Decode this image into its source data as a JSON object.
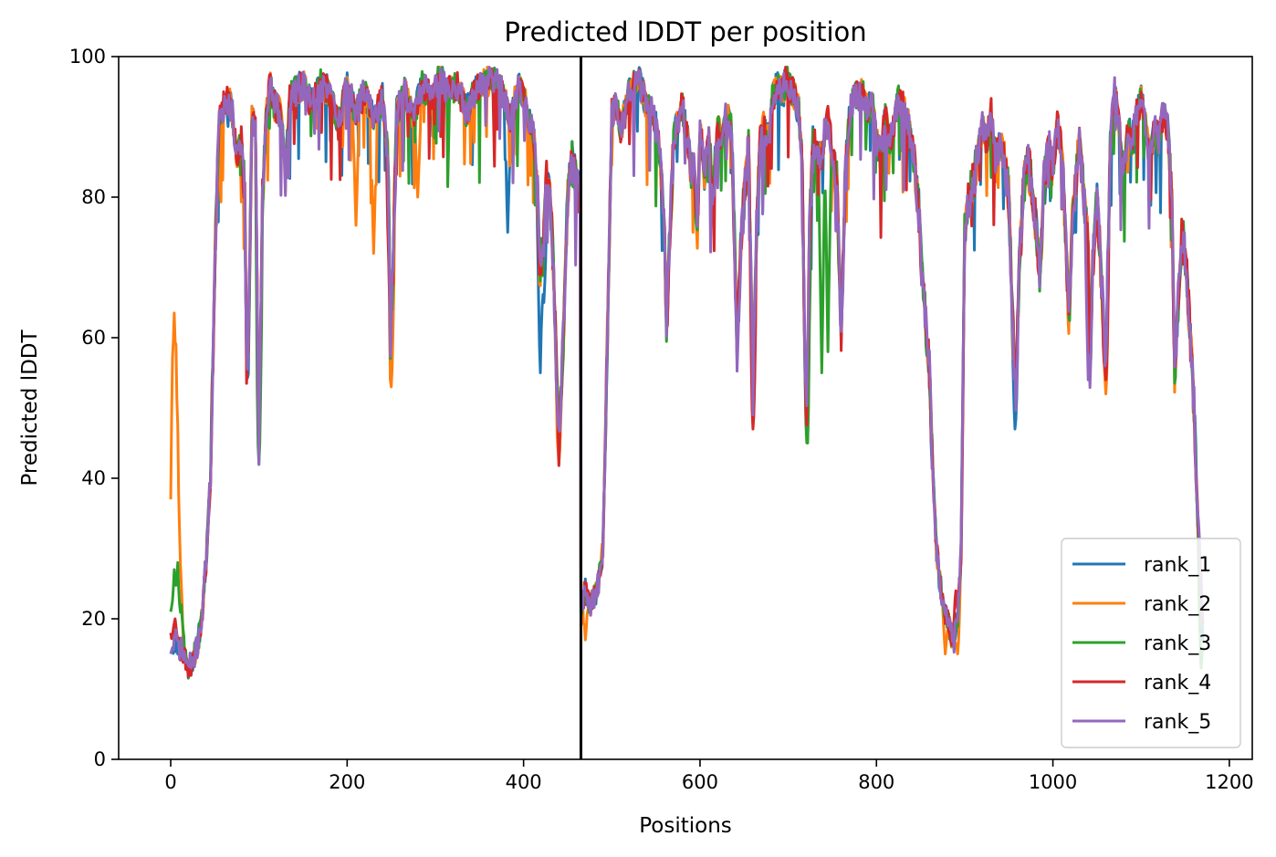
{
  "chart_data": {
    "type": "line",
    "title": "Predicted lDDT per position",
    "xlabel": "Positions",
    "ylabel": "Predicted lDDT",
    "xlim": [
      -59,
      1226
    ],
    "ylim": [
      0,
      100
    ],
    "x_ticks": [
      0,
      200,
      400,
      600,
      800,
      1000,
      1200
    ],
    "y_ticks": [
      0,
      20,
      40,
      60,
      80,
      100
    ],
    "grid": false,
    "legend_position": "lower-right",
    "chain_break": 465,
    "colors": {
      "rank_1": "#1f77b4",
      "rank_2": "#ff7f0e",
      "rank_3": "#2ca02c",
      "rank_4": "#d62728",
      "rank_5": "#9467bd",
      "chain_break": "#000000"
    },
    "base_profile": [
      [
        0,
        16
      ],
      [
        5,
        17
      ],
      [
        10,
        16
      ],
      [
        15,
        15
      ],
      [
        20,
        13
      ],
      [
        25,
        14
      ],
      [
        30,
        16
      ],
      [
        35,
        20
      ],
      [
        40,
        28
      ],
      [
        45,
        40
      ],
      [
        50,
        70
      ],
      [
        55,
        92
      ],
      [
        60,
        93
      ],
      [
        65,
        94
      ],
      [
        70,
        92
      ],
      [
        75,
        86
      ],
      [
        80,
        88
      ],
      [
        84,
        80
      ],
      [
        86,
        56
      ],
      [
        88,
        58
      ],
      [
        92,
        91
      ],
      [
        96,
        90
      ],
      [
        100,
        44
      ],
      [
        104,
        80
      ],
      [
        108,
        91
      ],
      [
        112,
        96
      ],
      [
        118,
        93
      ],
      [
        125,
        92
      ],
      [
        130,
        83
      ],
      [
        135,
        94
      ],
      [
        140,
        95
      ],
      [
        150,
        96
      ],
      [
        160,
        93
      ],
      [
        170,
        96
      ],
      [
        180,
        95
      ],
      [
        190,
        90
      ],
      [
        200,
        96
      ],
      [
        210,
        92
      ],
      [
        220,
        95
      ],
      [
        230,
        91
      ],
      [
        240,
        94
      ],
      [
        247,
        85
      ],
      [
        249,
        57
      ],
      [
        252,
        70
      ],
      [
        256,
        92
      ],
      [
        265,
        95
      ],
      [
        275,
        91
      ],
      [
        285,
        96
      ],
      [
        295,
        94
      ],
      [
        305,
        97
      ],
      [
        315,
        95
      ],
      [
        325,
        96
      ],
      [
        335,
        92
      ],
      [
        345,
        95
      ],
      [
        355,
        96
      ],
      [
        365,
        97
      ],
      [
        375,
        95
      ],
      [
        385,
        91
      ],
      [
        395,
        96
      ],
      [
        405,
        92
      ],
      [
        412,
        88
      ],
      [
        416,
        80
      ],
      [
        418,
        70
      ],
      [
        422,
        72
      ],
      [
        426,
        82
      ],
      [
        430,
        80
      ],
      [
        434,
        70
      ],
      [
        438,
        52
      ],
      [
        440,
        44
      ],
      [
        445,
        60
      ],
      [
        450,
        80
      ],
      [
        455,
        85
      ],
      [
        460,
        82
      ],
      [
        464,
        80
      ],
      [
        465,
        22
      ],
      [
        470,
        24
      ],
      [
        475,
        22
      ],
      [
        480,
        23
      ],
      [
        485,
        25
      ],
      [
        490,
        30
      ],
      [
        495,
        60
      ],
      [
        500,
        92
      ],
      [
        505,
        93
      ],
      [
        510,
        90
      ],
      [
        515,
        92
      ],
      [
        520,
        95
      ],
      [
        525,
        96
      ],
      [
        530,
        97
      ],
      [
        535,
        95
      ],
      [
        540,
        92
      ],
      [
        545,
        93
      ],
      [
        550,
        90
      ],
      [
        555,
        86
      ],
      [
        560,
        75
      ],
      [
        562,
        60
      ],
      [
        565,
        72
      ],
      [
        570,
        88
      ],
      [
        575,
        91
      ],
      [
        580,
        93
      ],
      [
        585,
        89
      ],
      [
        590,
        84
      ],
      [
        593,
        85
      ],
      [
        597,
        75
      ],
      [
        600,
        90
      ],
      [
        605,
        84
      ],
      [
        610,
        88
      ],
      [
        615,
        80
      ],
      [
        620,
        90
      ],
      [
        625,
        88
      ],
      [
        630,
        92
      ],
      [
        635,
        90
      ],
      [
        638,
        80
      ],
      [
        642,
        58
      ],
      [
        646,
        72
      ],
      [
        650,
        80
      ],
      [
        655,
        88
      ],
      [
        660,
        52
      ],
      [
        664,
        75
      ],
      [
        668,
        88
      ],
      [
        672,
        90
      ],
      [
        678,
        88
      ],
      [
        682,
        94
      ],
      [
        688,
        96
      ],
      [
        694,
        95
      ],
      [
        698,
        97
      ],
      [
        702,
        96
      ],
      [
        708,
        94
      ],
      [
        712,
        92
      ],
      [
        716,
        85
      ],
      [
        719,
        55
      ],
      [
        721,
        48
      ],
      [
        724,
        75
      ],
      [
        728,
        88
      ],
      [
        732,
        87
      ],
      [
        738,
        86
      ],
      [
        742,
        90
      ],
      [
        746,
        91
      ],
      [
        750,
        86
      ],
      [
        755,
        82
      ],
      [
        760,
        60
      ],
      [
        765,
        85
      ],
      [
        770,
        92
      ],
      [
        775,
        95
      ],
      [
        780,
        94
      ],
      [
        785,
        95
      ],
      [
        790,
        92
      ],
      [
        795,
        94
      ],
      [
        800,
        88
      ],
      [
        805,
        86
      ],
      [
        810,
        92
      ],
      [
        815,
        88
      ],
      [
        820,
        90
      ],
      [
        825,
        94
      ],
      [
        830,
        93
      ],
      [
        835,
        91
      ],
      [
        840,
        88
      ],
      [
        845,
        82
      ],
      [
        848,
        78
      ],
      [
        852,
        68
      ],
      [
        856,
        62
      ],
      [
        860,
        55
      ],
      [
        864,
        40
      ],
      [
        868,
        30
      ],
      [
        872,
        25
      ],
      [
        876,
        22
      ],
      [
        880,
        20
      ],
      [
        884,
        18
      ],
      [
        888,
        17
      ],
      [
        892,
        20
      ],
      [
        896,
        30
      ],
      [
        900,
        75
      ],
      [
        905,
        80
      ],
      [
        910,
        82
      ],
      [
        915,
        86
      ],
      [
        920,
        90
      ],
      [
        925,
        88
      ],
      [
        930,
        92
      ],
      [
        935,
        85
      ],
      [
        940,
        88
      ],
      [
        945,
        85
      ],
      [
        950,
        80
      ],
      [
        955,
        60
      ],
      [
        958,
        52
      ],
      [
        962,
        70
      ],
      [
        966,
        80
      ],
      [
        970,
        85
      ],
      [
        975,
        83
      ],
      [
        980,
        77
      ],
      [
        985,
        68
      ],
      [
        990,
        82
      ],
      [
        995,
        88
      ],
      [
        1000,
        84
      ],
      [
        1005,
        90
      ],
      [
        1010,
        87
      ],
      [
        1015,
        72
      ],
      [
        1018,
        62
      ],
      [
        1022,
        76
      ],
      [
        1026,
        82
      ],
      [
        1030,
        88
      ],
      [
        1035,
        80
      ],
      [
        1040,
        75
      ],
      [
        1042,
        55
      ],
      [
        1045,
        70
      ],
      [
        1050,
        80
      ],
      [
        1055,
        68
      ],
      [
        1060,
        56
      ],
      [
        1065,
        88
      ],
      [
        1070,
        95
      ],
      [
        1075,
        90
      ],
      [
        1080,
        82
      ],
      [
        1085,
        90
      ],
      [
        1090,
        88
      ],
      [
        1095,
        92
      ],
      [
        1100,
        94
      ],
      [
        1105,
        90
      ],
      [
        1110,
        85
      ],
      [
        1115,
        90
      ],
      [
        1120,
        88
      ],
      [
        1125,
        92
      ],
      [
        1130,
        90
      ],
      [
        1135,
        80
      ],
      [
        1138,
        55
      ],
      [
        1142,
        65
      ],
      [
        1146,
        75
      ],
      [
        1150,
        72
      ],
      [
        1155,
        62
      ],
      [
        1160,
        50
      ],
      [
        1164,
        35
      ],
      [
        1168,
        25
      ],
      [
        1170,
        18
      ]
    ],
    "series": [
      {
        "name": "rank_1",
        "seed": 11,
        "overrides": [
          [
            382,
            75
          ],
          [
            419,
            55
          ],
          [
            423,
            65
          ],
          [
            957,
            47
          ]
        ]
      },
      {
        "name": "rank_2",
        "seed": 23,
        "overrides": [
          [
            0,
            24
          ],
          [
            2,
            50
          ],
          [
            4,
            64
          ],
          [
            6,
            63
          ],
          [
            8,
            55
          ],
          [
            10,
            40
          ],
          [
            12,
            25
          ],
          [
            16,
            15
          ],
          [
            210,
            76
          ],
          [
            230,
            72
          ],
          [
            250,
            53
          ],
          [
            280,
            80
          ],
          [
            440,
            42
          ],
          [
            470,
            17
          ],
          [
            878,
            15
          ],
          [
            892,
            15
          ],
          [
            1060,
            52
          ]
        ]
      },
      {
        "name": "rank_3",
        "seed": 37,
        "overrides": [
          [
            0,
            21
          ],
          [
            4,
            27
          ],
          [
            8,
            28
          ],
          [
            12,
            22
          ],
          [
            100,
            42
          ],
          [
            722,
            45
          ],
          [
            738,
            55
          ],
          [
            745,
            58
          ],
          [
            1168,
            13
          ]
        ]
      },
      {
        "name": "rank_4",
        "seed": 53,
        "overrides": [
          [
            0,
            18
          ],
          [
            5,
            20
          ],
          [
            660,
            47
          ],
          [
            890,
            24
          ],
          [
            248,
            66
          ],
          [
            1060,
            54
          ]
        ]
      },
      {
        "name": "rank_5",
        "seed": 71,
        "overrides": [
          [
            0,
            15
          ],
          [
            1040,
            54
          ]
        ]
      }
    ]
  }
}
